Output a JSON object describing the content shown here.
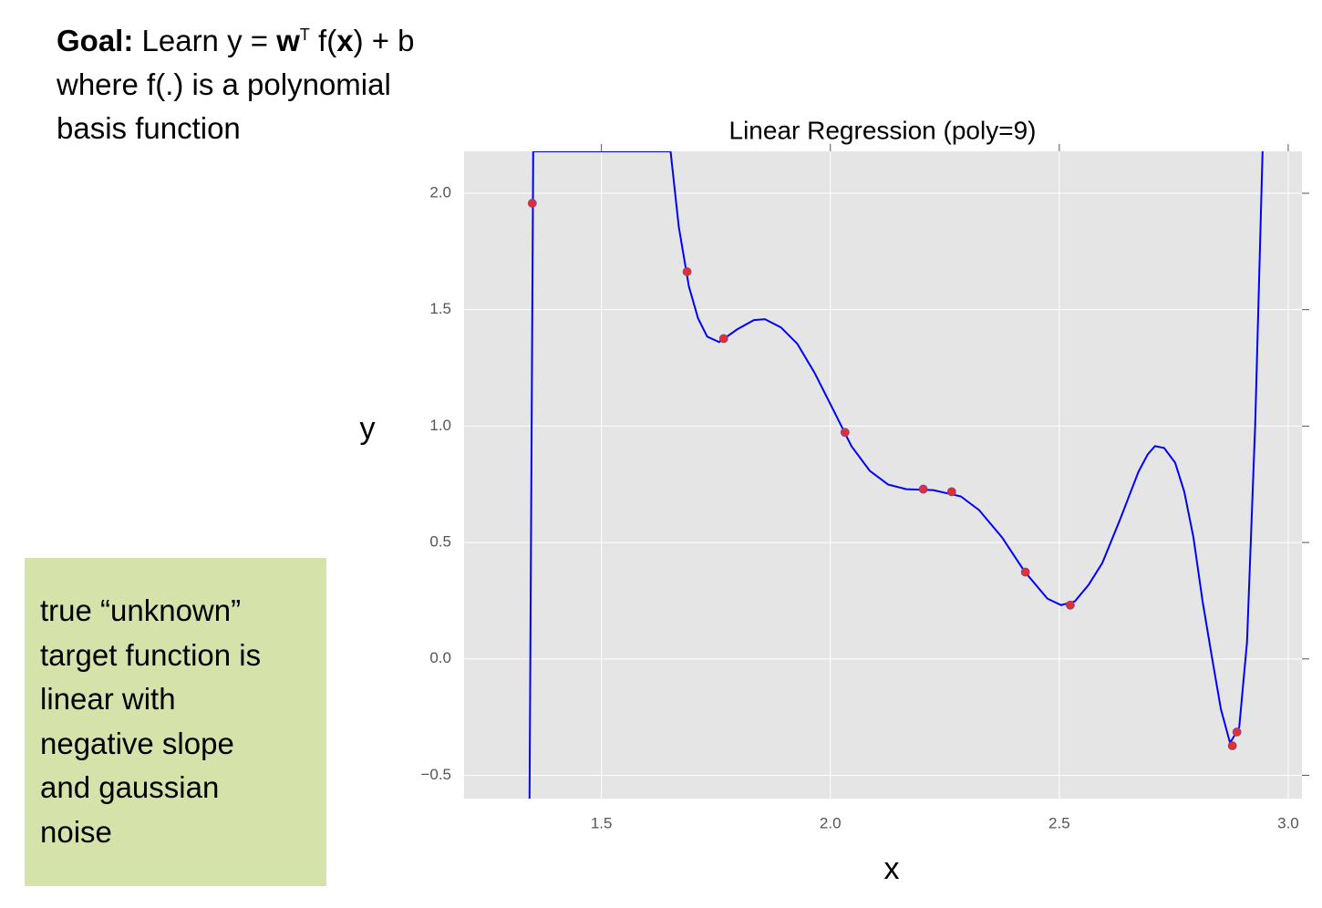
{
  "goal": {
    "label": "Goal:",
    "text1": " Learn y = ",
    "w": "w",
    "sup": "T",
    "text2": " f(",
    "x": "x",
    "text3": ") + b",
    "line2": "where f(.) is a polynomial",
    "line3": "basis function"
  },
  "note": {
    "lines": [
      "true “unknown”",
      "target function is",
      "linear with",
      "negative slope",
      "and gaussian",
      "noise"
    ]
  },
  "chart_data": {
    "type": "scatter",
    "title": "Linear Regression (poly=9)",
    "x_label": "x",
    "y_label": "y",
    "xlim": [
      1.2,
      3.03
    ],
    "ylim": [
      -0.6,
      2.18
    ],
    "grid": true,
    "xticks": [
      1.5,
      {
        "value": 2,
        "label": "2.0"
      },
      2.5,
      {
        "value": 3,
        "label": "3.0"
      }
    ],
    "yticks": [
      {
        "value": -0.5,
        "label": "−0.5"
      },
      {
        "value": 0,
        "label": "0.0"
      },
      0.5,
      {
        "value": 1,
        "label": "1.0"
      },
      1.5,
      {
        "value": 2,
        "label": "2.0"
      }
    ],
    "series": [
      {
        "type": "line",
        "color": "#0000ff",
        "x": [
          1.343,
          1.351,
          1.651,
          1.669,
          1.691,
          1.711,
          1.731,
          1.757,
          1.797,
          1.833,
          1.857,
          1.892,
          1.928,
          1.966,
          2.006,
          2.046,
          2.086,
          2.126,
          2.166,
          2.225,
          2.285,
          2.325,
          2.375,
          2.424,
          2.474,
          2.504,
          2.534,
          2.564,
          2.594,
          2.633,
          2.673,
          2.693,
          2.709,
          2.729,
          2.753,
          2.773,
          2.793,
          2.813,
          2.833,
          2.853,
          2.873,
          2.893,
          2.91,
          2.928,
          2.944
        ],
        "values": [
          -0.6,
          2.18,
          2.18,
          1.855,
          1.6,
          1.463,
          1.384,
          1.361,
          1.416,
          1.455,
          1.459,
          1.424,
          1.353,
          1.227,
          1.071,
          0.914,
          0.808,
          0.749,
          0.729,
          0.725,
          0.698,
          0.639,
          0.522,
          0.376,
          0.259,
          0.231,
          0.247,
          0.318,
          0.412,
          0.6,
          0.804,
          0.878,
          0.914,
          0.906,
          0.843,
          0.718,
          0.522,
          0.247,
          0.012,
          -0.216,
          -0.361,
          -0.294,
          0.071,
          1.012,
          2.18
        ]
      },
      {
        "type": "scatter",
        "color": "#e03030",
        "x": [
          1.349,
          1.687,
          1.767,
          2.032,
          2.203,
          2.265,
          2.426,
          2.524,
          2.878,
          2.888
        ],
        "values": [
          1.957,
          1.663,
          1.376,
          0.973,
          0.729,
          0.718,
          0.373,
          0.231,
          -0.373,
          -0.314
        ]
      }
    ]
  }
}
